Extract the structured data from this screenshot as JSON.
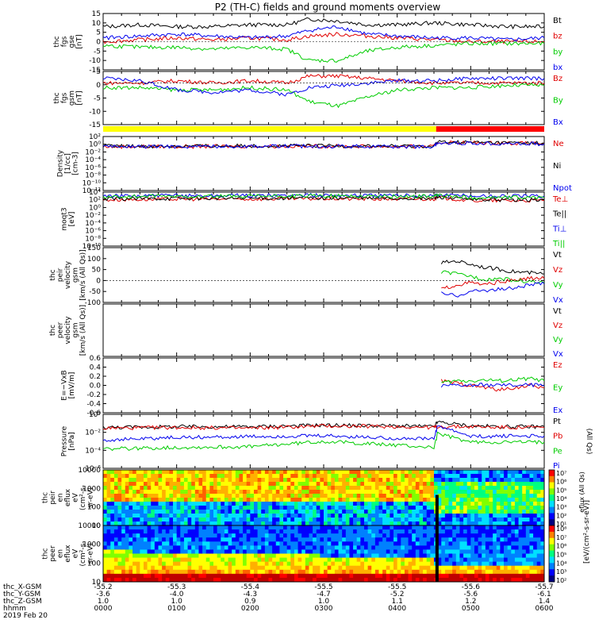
{
  "title": "P2 (TH-C) fields and ground moments overview",
  "panels": [
    {
      "id": "fgs_gse",
      "ylabel": [
        "thc",
        "fgs",
        "gse",
        "[nT]"
      ],
      "ticks": [
        "15",
        "10",
        "5",
        "0",
        "-5",
        "-10",
        "-15"
      ],
      "legend": [
        {
          "text": "Bt",
          "color": "#000000"
        },
        {
          "text": "bz",
          "color": "#e00000"
        },
        {
          "text": "by",
          "color": "#00cc00"
        },
        {
          "text": "bx",
          "color": "#0000ee"
        }
      ]
    },
    {
      "id": "fgs_gsm",
      "ylabel": [
        "thc",
        "fgs",
        "gsm",
        "[nT]"
      ],
      "ticks": [
        "5",
        "0",
        "-5",
        "-10",
        "-15"
      ],
      "legend": [
        {
          "text": "Bz",
          "color": "#e00000"
        },
        {
          "text": "By",
          "color": "#00cc00"
        },
        {
          "text": "Bx",
          "color": "#0000ee"
        }
      ]
    },
    {
      "id": "density",
      "ylabel": [
        "Density",
        "[1/cc]",
        "[cm-3]"
      ],
      "ticks": [
        "10²",
        "10⁰",
        "10⁻²",
        "10⁻⁴",
        "10⁻⁶",
        "10⁻⁸",
        "10⁻¹⁰",
        "10⁻¹²"
      ],
      "legend": [
        {
          "text": "Ne",
          "color": "#e00000"
        },
        {
          "text": "Ni",
          "color": "#000000"
        },
        {
          "text": "Npot",
          "color": "#0000ee"
        }
      ]
    },
    {
      "id": "temperature",
      "ylabel": [
        "moqt3",
        "[eV]"
      ],
      "ticks": [
        "10⁴",
        "10²",
        "10⁰",
        "10⁻²",
        "10⁻⁴",
        "10⁻⁶",
        "10⁻⁸",
        "10⁻¹⁰"
      ],
      "legend": [
        {
          "text": "Te⊥",
          "color": "#e00000"
        },
        {
          "text": "Te||",
          "color": "#000000"
        },
        {
          "text": "Ti⊥",
          "color": "#0000ee"
        },
        {
          "text": "Ti||",
          "color": "#00cc00"
        }
      ]
    },
    {
      "id": "peir_velocity",
      "ylabel": [
        "thc",
        "peir",
        "velocity",
        "gsm",
        "[km/s (All Qs)]"
      ],
      "ticks": [
        "150",
        "100",
        "50",
        "0",
        "-50",
        "-100"
      ],
      "legend": [
        {
          "text": "Vt",
          "color": "#000000"
        },
        {
          "text": "Vz",
          "color": "#e00000"
        },
        {
          "text": "Vy",
          "color": "#00cc00"
        },
        {
          "text": "Vx",
          "color": "#0000ee"
        }
      ]
    },
    {
      "id": "peer_velocity",
      "ylabel": [
        "thc",
        "peer",
        "velocity",
        "gsm",
        "[km/s (All Qs)]"
      ],
      "ticks": [],
      "legend": [
        {
          "text": "Vt",
          "color": "#000000"
        },
        {
          "text": "Vz",
          "color": "#e00000"
        },
        {
          "text": "Vy",
          "color": "#00cc00"
        },
        {
          "text": "Vx",
          "color": "#0000ee"
        }
      ]
    },
    {
      "id": "efield",
      "ylabel": [
        "E=−VxB",
        "[mV/m]"
      ],
      "ticks": [
        "0.6",
        "0.4",
        "0.2",
        "0.0",
        "-0.2",
        "-0.4",
        "-0.6"
      ],
      "legend": [
        {
          "text": "Ez",
          "color": "#e00000"
        },
        {
          "text": "Ey",
          "color": "#00cc00"
        },
        {
          "text": "Ex",
          "color": "#0000ee"
        }
      ]
    },
    {
      "id": "pressure",
      "ylabel": [
        "Pressure",
        "[nPa]"
      ],
      "ticks": [
        "10⁰",
        "10⁻²",
        "10⁻⁴",
        "10⁻⁶"
      ],
      "legend": [
        {
          "text": "Pt",
          "color": "#000000"
        },
        {
          "text": "Pb",
          "color": "#e00000"
        },
        {
          "text": "Pe",
          "color": "#00cc00"
        },
        {
          "text": "Pi",
          "color": "#0000ee"
        }
      ],
      "side_label": "(All Qs)"
    },
    {
      "id": "peir_spec",
      "ylabel": [
        "thc",
        "peir",
        "en",
        "eflux",
        "eV",
        "(cm²-s-",
        "sr-eV)"
      ],
      "ticks": [
        "10000",
        "1000",
        "100",
        "10"
      ],
      "legend": []
    },
    {
      "id": "peer_spec",
      "ylabel": [
        "thc",
        "peer",
        "en",
        "eflux",
        "eV",
        "(cm²-s-",
        "sr-eV)"
      ],
      "ticks": [
        "10000",
        "1000",
        "100",
        "10"
      ],
      "legend": []
    }
  ],
  "colorbars": [
    {
      "ticks": [
        "10⁷",
        "10⁶",
        "10⁵",
        "10⁴",
        "10³",
        "10²",
        "10¹"
      ]
    },
    {
      "ticks": [
        "10⁸",
        "10⁷",
        "10⁶",
        "10⁵",
        "10⁴",
        "10³",
        "10²"
      ]
    }
  ],
  "colorbar_label": "[eV/(cm²-s-sr-eV)]",
  "colorbar_label2": "eflux (All Qs)",
  "xaxis": {
    "row_labels": [
      "thc_X-GSM",
      "thc_Y-GSM",
      "thc_Z-GSM",
      "hhmm",
      "2019 Feb 20"
    ],
    "columns": [
      [
        "-55.2",
        "-3.6",
        "1.0",
        "0000"
      ],
      [
        "-55.3",
        "-4.0",
        "1.0",
        "0100"
      ],
      [
        "-55.4",
        "-4.3",
        "0.9",
        "0200"
      ],
      [
        "-55.5",
        "-4.7",
        "1.0",
        "0300"
      ],
      [
        "-55.5",
        "-5.2",
        "1.1",
        "0400"
      ],
      [
        "-55.6",
        "-5.6",
        "1.2",
        "0500"
      ],
      [
        "-55.7",
        "-6.1",
        "1.4",
        "0600"
      ]
    ]
  },
  "chart_data": {
    "type": "line",
    "title": "P2 (TH-C) fields and ground moments overview",
    "time_range": [
      "00:00",
      "06:00"
    ],
    "date": "2019 Feb 20",
    "mode_bar": [
      {
        "from_hour": 0.0,
        "to_hour": 4.53,
        "color": "#ffff00"
      },
      {
        "from_hour": 4.53,
        "to_hour": 6.0,
        "color": "#ff0000"
      }
    ],
    "fgs_gse": {
      "ylim": [
        -15,
        15
      ],
      "series": [
        {
          "name": "Bt",
          "color": "#000000",
          "x": [
            0,
            0.5,
            1,
            1.5,
            2,
            2.5,
            2.8,
            3.2,
            3.6,
            4,
            4.5,
            5,
            5.5,
            6
          ],
          "y": [
            8,
            9,
            8,
            8,
            9,
            9,
            12,
            11,
            9,
            9,
            10,
            9,
            8,
            8
          ]
        },
        {
          "name": "bz",
          "color": "#e00000",
          "x": [
            0,
            0.5,
            1,
            1.5,
            2,
            2.5,
            2.8,
            3.2,
            3.6,
            4,
            4.5,
            5,
            5.5,
            6
          ],
          "y": [
            0,
            1,
            2,
            1,
            2,
            1,
            3,
            4,
            3,
            2,
            1,
            0,
            0,
            0
          ]
        },
        {
          "name": "by",
          "color": "#00cc00",
          "x": [
            0,
            0.5,
            1,
            1.5,
            2,
            2.5,
            2.8,
            3.2,
            3.6,
            4,
            4.5,
            5,
            5.5,
            6
          ],
          "y": [
            -2,
            -3,
            -3,
            -4,
            -3,
            -4,
            -10,
            -10,
            -5,
            -3,
            -2,
            -1,
            -1,
            -1
          ]
        },
        {
          "name": "bx",
          "color": "#0000ee",
          "x": [
            0,
            0.5,
            1,
            1.5,
            2,
            2.5,
            2.8,
            3.2,
            3.6,
            4,
            4.5,
            5,
            5.5,
            6
          ],
          "y": [
            2,
            3,
            4,
            3,
            2,
            3,
            6,
            8,
            4,
            3,
            2,
            2,
            1,
            2
          ]
        }
      ]
    },
    "fgs_gsm": {
      "ylim": [
        -18,
        5
      ],
      "series": [
        {
          "name": "Bz",
          "color": "#e00000",
          "x": [
            0,
            0.5,
            1,
            1.5,
            2,
            2.5,
            2.8,
            3.2,
            3.6,
            4,
            4.5,
            5,
            5.5,
            6
          ],
          "y": [
            0,
            0,
            1,
            0,
            1,
            0,
            3,
            3,
            2,
            1,
            0,
            0,
            0,
            0
          ]
        },
        {
          "name": "By",
          "color": "#00cc00",
          "x": [
            0,
            0.5,
            1,
            1.5,
            2,
            2.5,
            2.8,
            3.2,
            3.6,
            4,
            4.5,
            5,
            5.5,
            6
          ],
          "y": [
            -2,
            -2,
            -3,
            -3,
            -2,
            -3,
            -8,
            -10,
            -6,
            -3,
            -2,
            -2,
            -1,
            -1
          ]
        },
        {
          "name": "Bx",
          "color": "#0000ee",
          "x": [
            0,
            0.5,
            1,
            1.5,
            2,
            2.5,
            2.8,
            3.2,
            3.6,
            4,
            4.5,
            5,
            5.5,
            6
          ],
          "y": [
            2,
            1,
            -3,
            -4,
            -3,
            -5,
            -2,
            -1,
            0,
            1,
            1,
            2,
            2,
            2
          ]
        }
      ]
    },
    "density": {
      "log": true,
      "ylim": [
        -12,
        2
      ],
      "series": [
        {
          "name": "Ne",
          "color": "#e00000",
          "x": [
            0,
            1,
            2,
            3,
            4,
            4.5,
            4.55,
            5,
            5.5,
            6
          ],
          "y": [
            -0.6,
            -0.6,
            -0.5,
            -0.5,
            -0.6,
            -0.6,
            0.5,
            0.4,
            0.3,
            0.2
          ]
        },
        {
          "name": "Ni",
          "color": "#000000",
          "x": [
            0,
            1,
            2,
            3,
            4,
            4.5,
            4.55,
            5,
            5.5,
            6
          ],
          "y": [
            -0.5,
            -0.5,
            -0.4,
            -0.4,
            -0.5,
            -0.5,
            0.6,
            0.5,
            0.4,
            0.3
          ]
        },
        {
          "name": "Npot",
          "color": "#0000ee",
          "x": [
            0,
            1,
            2,
            3,
            4,
            4.5,
            4.55,
            5,
            5.5,
            6
          ],
          "y": [
            -0.6,
            -0.6,
            -0.5,
            -0.5,
            -0.6,
            -0.6,
            0.3,
            0.3,
            0.2,
            0.1
          ]
        }
      ]
    },
    "temperature": {
      "log": true,
      "ylim": [
        -10,
        4
      ],
      "series": [
        {
          "name": "Te⊥",
          "color": "#e00000",
          "x": [
            0,
            1,
            2,
            3,
            4,
            4.5,
            4.55,
            5,
            5.5,
            6
          ],
          "y": [
            2,
            2.2,
            2.2,
            2.3,
            2.2,
            2.2,
            2.6,
            1.8,
            1.8,
            1.8
          ]
        },
        {
          "name": "Te||",
          "color": "#000000",
          "x": [
            0,
            1,
            2,
            3,
            4,
            4.5,
            4.55,
            5,
            5.5,
            6
          ],
          "y": [
            2.2,
            2.4,
            2.4,
            2.5,
            2.4,
            2.3,
            2.8,
            2,
            2,
            2
          ]
        },
        {
          "name": "Ti⊥",
          "color": "#0000ee",
          "x": [
            0,
            1,
            2,
            3,
            4,
            4.5,
            4.55,
            5,
            5.5,
            6
          ],
          "y": [
            3,
            3.1,
            3.1,
            3.2,
            3.1,
            3.1,
            3.3,
            3,
            3,
            3
          ]
        },
        {
          "name": "Ti||",
          "color": "#00cc00",
          "x": [
            0,
            1,
            2,
            3,
            4,
            4.5,
            4.55,
            5,
            5.5,
            6
          ],
          "y": [
            2.8,
            2.9,
            2.9,
            3,
            2.9,
            2.9,
            3.1,
            2.6,
            2.6,
            2.6
          ]
        }
      ]
    },
    "peir_velocity": {
      "ylim": [
        -100,
        150
      ],
      "series": [
        {
          "name": "Vt",
          "color": "#000000",
          "x": [
            4.6,
            4.8,
            5,
            5.2,
            5.4,
            5.6,
            5.8,
            6
          ],
          "y": [
            80,
            90,
            75,
            60,
            50,
            40,
            35,
            30
          ]
        },
        {
          "name": "Vz",
          "color": "#e00000",
          "x": [
            4.6,
            4.8,
            5,
            5.2,
            5.4,
            5.6,
            5.8,
            6
          ],
          "y": [
            -40,
            -20,
            -10,
            -20,
            -5,
            0,
            10,
            10
          ]
        },
        {
          "name": "Vy",
          "color": "#00cc00",
          "x": [
            4.6,
            4.8,
            5,
            5.2,
            5.4,
            5.6,
            5.8,
            6
          ],
          "y": [
            40,
            30,
            20,
            5,
            10,
            0,
            -5,
            -10
          ]
        },
        {
          "name": "Vx",
          "color": "#0000ee",
          "x": [
            4.6,
            4.8,
            5,
            5.2,
            5.4,
            5.6,
            5.8,
            6
          ],
          "y": [
            -60,
            -70,
            -50,
            -45,
            -40,
            -35,
            -20,
            -15
          ]
        }
      ]
    },
    "efield": {
      "ylim": [
        -0.6,
        0.6
      ],
      "series": [
        {
          "name": "Ez",
          "color": "#e00000",
          "x": [
            4.6,
            4.8,
            5,
            5.2,
            5.4,
            5.6,
            5.8,
            6
          ],
          "y": [
            0.1,
            0.05,
            0.0,
            -0.05,
            -0.1,
            -0.05,
            0.0,
            -0.05
          ]
        },
        {
          "name": "Ey",
          "color": "#00cc00",
          "x": [
            4.6,
            4.8,
            5,
            5.2,
            5.4,
            5.6,
            5.8,
            6
          ],
          "y": [
            0.05,
            0.1,
            0.1,
            0.12,
            0.1,
            0.12,
            0.15,
            0.1
          ]
        },
        {
          "name": "Ex",
          "color": "#0000ee",
          "x": [
            4.6,
            4.8,
            5,
            5.2,
            5.4,
            5.6,
            5.8,
            6
          ],
          "y": [
            -0.02,
            0.0,
            0.0,
            0.01,
            0.0,
            0.0,
            0.01,
            0.0
          ]
        }
      ]
    },
    "pressure": {
      "log": true,
      "ylim": [
        -7,
        0
      ],
      "series": [
        {
          "name": "Pt",
          "color": "#000000",
          "x": [
            0,
            1,
            2,
            3,
            4,
            4.5,
            4.55,
            5,
            5.5,
            6
          ],
          "y": [
            -1.7,
            -1.6,
            -1.6,
            -1.4,
            -1.5,
            -1.6,
            -1.0,
            -1.5,
            -1.6,
            -1.6
          ]
        },
        {
          "name": "Pb",
          "color": "#e00000",
          "x": [
            0,
            1,
            2,
            3,
            4,
            4.5,
            4.55,
            5,
            5.5,
            6
          ],
          "y": [
            -1.8,
            -1.7,
            -1.8,
            -1.5,
            -1.6,
            -1.7,
            -1.6,
            -1.6,
            -1.7,
            -1.7
          ]
        },
        {
          "name": "Pe",
          "color": "#00cc00",
          "x": [
            0,
            1,
            2,
            3,
            4,
            4.5,
            4.55,
            5,
            5.5,
            6
          ],
          "y": [
            -4.5,
            -4.3,
            -4.2,
            -3.5,
            -4.0,
            -4.3,
            -2.5,
            -3.6,
            -3.6,
            -3.6
          ]
        },
        {
          "name": "Pi",
          "color": "#0000ee",
          "x": [
            0,
            1,
            2,
            3,
            4,
            4.5,
            4.55,
            5,
            5.5,
            6
          ],
          "y": [
            -3.3,
            -3.0,
            -2.9,
            -2.8,
            -3.1,
            -3.2,
            -1.5,
            -2.9,
            -2.8,
            -2.8
          ]
        }
      ]
    },
    "peir_spec": {
      "type": "heatmap",
      "ylim_log": [
        1,
        4
      ],
      "energy_ticks_eV": [
        10,
        100,
        1000,
        10000
      ],
      "zlim_log": [
        1,
        7
      ]
    },
    "peer_spec": {
      "type": "heatmap",
      "ylim_log": [
        1,
        4
      ],
      "energy_ticks_eV": [
        10,
        100,
        1000,
        10000
      ],
      "zlim_log": [
        2,
        8
      ]
    }
  }
}
